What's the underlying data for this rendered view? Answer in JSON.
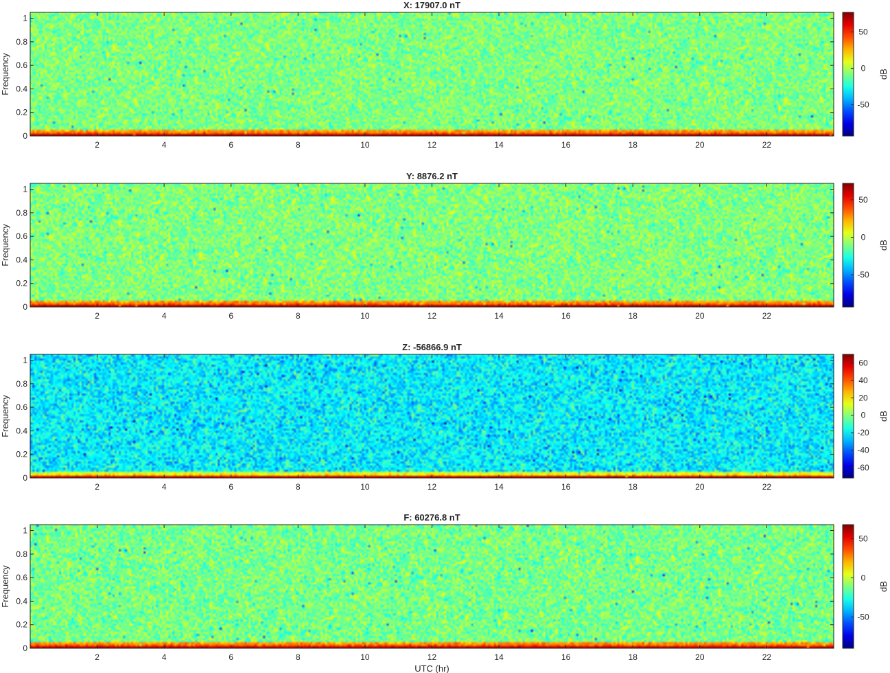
{
  "chart_data": [
    {
      "type": "heatmap",
      "title": "X: 17907.0 nT",
      "xlabel": "",
      "ylabel": "Frequency",
      "colorbar_label": "dB",
      "x_ticks": [
        2,
        4,
        6,
        8,
        10,
        12,
        14,
        16,
        18,
        20,
        22
      ],
      "xlim": [
        0,
        24
      ],
      "y_ticks": [
        0,
        0.2,
        0.4,
        0.6,
        0.8,
        1
      ],
      "ylim": [
        0,
        1.05
      ],
      "clim": [
        -93,
        77
      ],
      "colorbar_ticks": [
        -50,
        0,
        50
      ],
      "colormap": "jet",
      "background_level_db": -8,
      "low_frequency_band_db": 45
    },
    {
      "type": "heatmap",
      "title": "Y: 8876.2 nT",
      "xlabel": "",
      "ylabel": "Frequency",
      "colorbar_label": "dB",
      "x_ticks": [
        2,
        4,
        6,
        8,
        10,
        12,
        14,
        16,
        18,
        20,
        22
      ],
      "xlim": [
        0,
        24
      ],
      "y_ticks": [
        0,
        0.2,
        0.4,
        0.6,
        0.8,
        1
      ],
      "ylim": [
        0,
        1.05
      ],
      "clim": [
        -93,
        72
      ],
      "colorbar_ticks": [
        -50,
        0,
        50
      ],
      "colormap": "jet",
      "background_level_db": -10,
      "low_frequency_band_db": 42
    },
    {
      "type": "heatmap",
      "title": "Z: -56866.9 nT",
      "xlabel": "",
      "ylabel": "Frequency",
      "colorbar_label": "dB",
      "x_ticks": [
        2,
        4,
        6,
        8,
        10,
        12,
        14,
        16,
        18,
        20,
        22
      ],
      "xlim": [
        0,
        24
      ],
      "y_ticks": [
        0,
        0.2,
        0.4,
        0.6,
        0.8,
        1
      ],
      "ylim": [
        0,
        1.05
      ],
      "clim": [
        -72,
        70
      ],
      "colorbar_ticks": [
        -60,
        -40,
        -20,
        0,
        20,
        40,
        60
      ],
      "colormap": "jet",
      "background_level_db": -20,
      "low_frequency_band_db": 28
    },
    {
      "type": "heatmap",
      "title": "F: 60276.8 nT",
      "xlabel": "UTC (hr)",
      "ylabel": "Frequency",
      "colorbar_label": "dB",
      "x_ticks": [
        2,
        4,
        6,
        8,
        10,
        12,
        14,
        16,
        18,
        20,
        22
      ],
      "xlim": [
        0,
        24
      ],
      "y_ticks": [
        0,
        0.2,
        0.4,
        0.6,
        0.8,
        1
      ],
      "ylim": [
        0,
        1.05
      ],
      "clim": [
        -90,
        68
      ],
      "colorbar_ticks": [
        -50,
        0,
        50
      ],
      "colormap": "jet",
      "background_level_db": -12,
      "low_frequency_band_db": 40
    }
  ]
}
